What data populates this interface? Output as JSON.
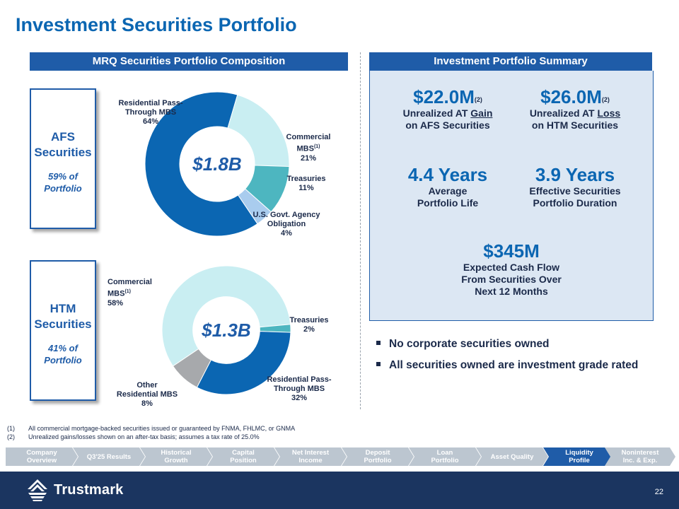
{
  "title": "Investment Securities Portfolio",
  "left_header": "MRQ Securities Portfolio Composition",
  "right_header": "Investment Portfolio Summary",
  "afs": {
    "title_line1": "AFS",
    "title_line2": "Securities",
    "share_line1": "59% of",
    "share_line2": "Portfolio",
    "total": "$1.8B",
    "slices": [
      {
        "label_lines": [
          "Residential Pass-",
          "Through MBS"
        ],
        "pct_text": "64%",
        "value": 64,
        "color": "#0b66b2"
      },
      {
        "label_lines": [
          "Commercial",
          "MBS"
        ],
        "sup": "(1)",
        "pct_text": "21%",
        "value": 21,
        "color": "#c9eef2"
      },
      {
        "label_lines": [
          "Treasuries"
        ],
        "pct_text": "11%",
        "value": 11,
        "color": "#4db6c0"
      },
      {
        "label_lines": [
          "U.S. Govt. Agency",
          "Obligation"
        ],
        "pct_text": "4%",
        "value": 4,
        "color": "#a9ccee"
      }
    ]
  },
  "htm": {
    "title_line1": "HTM",
    "title_line2": "Securities",
    "share_line1": "41% of",
    "share_line2": "Portfolio",
    "total": "$1.3B",
    "slices": [
      {
        "label_lines": [
          "Commercial",
          "MBS"
        ],
        "sup": "(1)",
        "pct_text": "58%",
        "value": 58,
        "color": "#c9eef2"
      },
      {
        "label_lines": [
          "Treasuries"
        ],
        "pct_text": "2%",
        "value": 2,
        "color": "#4db6c0"
      },
      {
        "label_lines": [
          "Residential Pass-",
          "Through MBS"
        ],
        "pct_text": "32%",
        "value": 32,
        "color": "#0b66b2"
      },
      {
        "label_lines": [
          "Other",
          "Residential MBS"
        ],
        "pct_text": "8%",
        "value": 8,
        "color": "#a7a9ac"
      }
    ]
  },
  "summary": {
    "unrealized_gain": {
      "value": "$22.0M",
      "note": "(2)",
      "line1_pre": "Unrealized AT ",
      "line1_u": "Gain",
      "line2": "on AFS Securities"
    },
    "unrealized_loss": {
      "value": "$26.0M",
      "note": "(2)",
      "line1_pre": "Unrealized AT ",
      "line1_u": "Loss",
      "line2": "on HTM Securities"
    },
    "avg_life": {
      "value": "4.4 Years",
      "line1": "Average",
      "line2": "Portfolio Life"
    },
    "duration": {
      "value": "3.9 Years",
      "line1": "Effective Securities",
      "line2": "Portfolio Duration"
    },
    "cash_flow": {
      "value": "$345M",
      "line1": "Expected Cash Flow",
      "line2": "From Securities Over",
      "line3": "Next 12 Months"
    }
  },
  "bullets": [
    "No corporate securities owned",
    "All securities owned are investment grade rated"
  ],
  "footnotes": [
    {
      "num": "(1)",
      "text": "All commercial mortgage-backed securities issued or guaranteed by FNMA, FHLMC, or GNMA"
    },
    {
      "num": "(2)",
      "text": "Unrealized gains/losses shown on an after-tax basis; assumes a tax rate of 25.0%"
    }
  ],
  "nav": [
    {
      "line1": "Company",
      "line2": "Overview"
    },
    {
      "line1": "Q3'25 Results",
      "line2": ""
    },
    {
      "line1": "Historical",
      "line2": "Growth"
    },
    {
      "line1": "Capital",
      "line2": "Position"
    },
    {
      "line1": "Net Interest",
      "line2": "Income"
    },
    {
      "line1": "Deposit",
      "line2": "Portfolio"
    },
    {
      "line1": "Loan",
      "line2": "Portfolio"
    },
    {
      "line1": "Asset Quality",
      "line2": ""
    },
    {
      "line1": "Liquidity",
      "line2": "Profile"
    },
    {
      "line1": "Noninterest",
      "line2": "Inc. & Exp."
    }
  ],
  "nav_active": "Liquidity",
  "brand": "Trustmark",
  "page_number": "22",
  "colors": {
    "primary": "#1f5ca8",
    "accent": "#0b66b2",
    "nav_inactive": "#bcc6d0",
    "footer": "#1b3560",
    "summary_bg": "#dce7f3"
  }
}
